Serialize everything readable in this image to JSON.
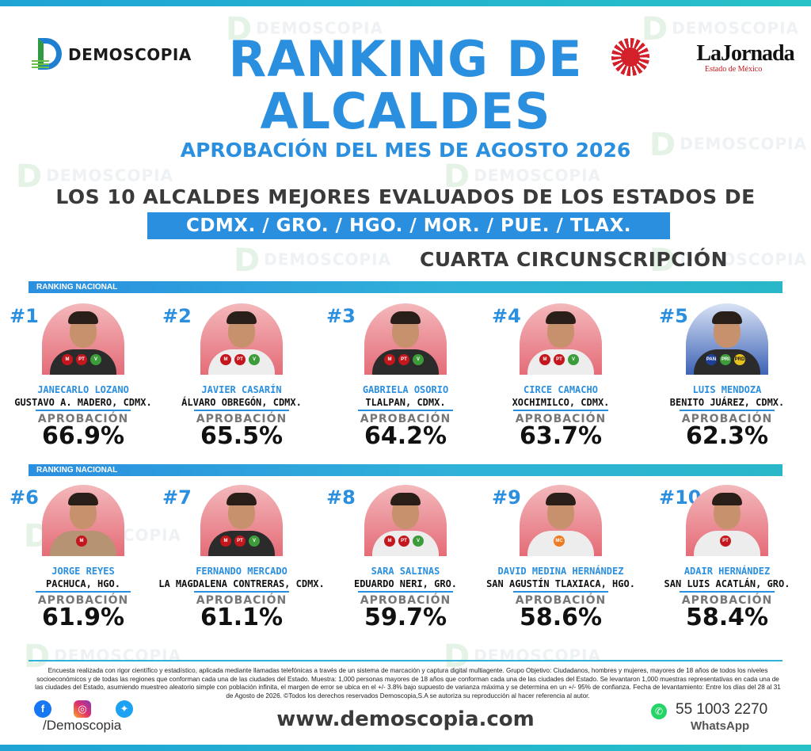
{
  "brand_left": "DEMOSCOPIA",
  "brand_right": {
    "name": "LaJornada",
    "sub": "Estado de México"
  },
  "title_line1": "RANKING DE",
  "title_line2": "ALCALDES",
  "subtitle": "APROBACIÓN DEL MES DE AGOSTO 2026",
  "headline": "LOS 10 ALCALDES MEJORES EVALUADOS DE LOS ESTADOS DE",
  "states": "CDMX. / GRO. / HGO. / MOR. / PUE. / TLAX.",
  "circunscripcion": "CUARTA CIRCUNSCRIPCIÓN",
  "ranking_label": "RANKING NACIONAL",
  "approval_label": "APROBACIÓN",
  "watermark": "DEMOSCOPIA",
  "mayors": [
    {
      "rank": "#1",
      "name": "JANECARLO LOZANO",
      "place": "GUSTAVO A. MADERO, CDMX.",
      "approval": "66.9%",
      "approval_value": 66.9,
      "parties": [
        "MORENA",
        "PT",
        "VERDE"
      ]
    },
    {
      "rank": "#2",
      "name": "JAVIER CASARÍN",
      "place": "ÁLVARO OBREGÓN, CDMX.",
      "approval": "65.5%",
      "approval_value": 65.5,
      "parties": [
        "MORENA",
        "PT",
        "VERDE"
      ]
    },
    {
      "rank": "#3",
      "name": "GABRIELA OSORIO",
      "place": "TLALPAN, CDMX.",
      "approval": "64.2%",
      "approval_value": 64.2,
      "parties": [
        "MORENA",
        "PT",
        "VERDE"
      ]
    },
    {
      "rank": "#4",
      "name": "CIRCE CAMACHO",
      "place": "XOCHIMILCO, CDMX.",
      "approval": "63.7%",
      "approval_value": 63.7,
      "parties": [
        "MORENA",
        "PT",
        "VERDE"
      ]
    },
    {
      "rank": "#5",
      "name": "LUIS MENDOZA",
      "place": "BENITO JUÁREZ, CDMX.",
      "approval": "62.3%",
      "approval_value": 62.3,
      "parties": [
        "PAN",
        "PRI",
        "PRD"
      ]
    },
    {
      "rank": "#6",
      "name": "JORGE REYES",
      "place": "PACHUCA, HGO.",
      "approval": "61.9%",
      "approval_value": 61.9,
      "parties": [
        "MORENA"
      ]
    },
    {
      "rank": "#7",
      "name": "FERNANDO MERCADO",
      "place": "LA MAGDALENA CONTRERAS, CDMX.",
      "approval": "61.1%",
      "approval_value": 61.1,
      "parties": [
        "MORENA",
        "PT",
        "VERDE"
      ]
    },
    {
      "rank": "#8",
      "name": "SARA SALINAS",
      "place": "EDUARDO NERI, GRO.",
      "approval": "59.7%",
      "approval_value": 59.7,
      "parties": [
        "MORENA",
        "PT",
        "VERDE"
      ]
    },
    {
      "rank": "#9",
      "name": "DAVID MEDINA HERNÁNDEZ",
      "place": "SAN AGUSTÍN TLAXIACA, HGO.",
      "approval": "58.6%",
      "approval_value": 58.6,
      "parties": [
        "MC"
      ]
    },
    {
      "rank": "#10",
      "name": "ADAIR HERNÁNDEZ",
      "place": "SAN LUIS ACATLÁN, GRO.",
      "approval": "58.4%",
      "approval_value": 58.4,
      "parties": [
        "PT"
      ]
    }
  ],
  "footnote": "Encuesta realizada con rigor científico y estadístico, aplicada mediante llamadas telefónicas a través de un sistema de marcación y captura digital multiagente. Grupo Objetivo: Ciudadanos, hombres y mujeres, mayores de 18 años de todos los niveles socioeconómicos y de todas las regiones que conforman cada una de las ciudades del Estado. Muestra: 1,000 personas mayores de 18 años que conforman cada una de las ciudades del Estado. Se levantaron 1,000 muestras representativas en cada una de las ciudades del Estado, asumiendo muestreo aleatorio simple con población infinita, el margen de error se ubica en el +/- 3.8% bajo supuesto de varianza máxima y se determina en un +/- 95% de confianza. Fecha de levantamiento: Entre los días del 28 al 31 de Agosto de 2026. ©Todos los derechos reservados Demoscopia,S.A se autoriza su reproducción al hacer referencia al autor.",
  "social_handle": "/Demoscopia",
  "website": "www.demoscopia.com",
  "phone": "55 1003 2270",
  "whatsapp_label": "WhatsApp",
  "colors": {
    "accent_blue": "#2b8fe0",
    "bar_teal": "#29b7c9",
    "morena": "#c4171d",
    "verde": "#3c9c3a",
    "pan": "#1d3f9a"
  }
}
